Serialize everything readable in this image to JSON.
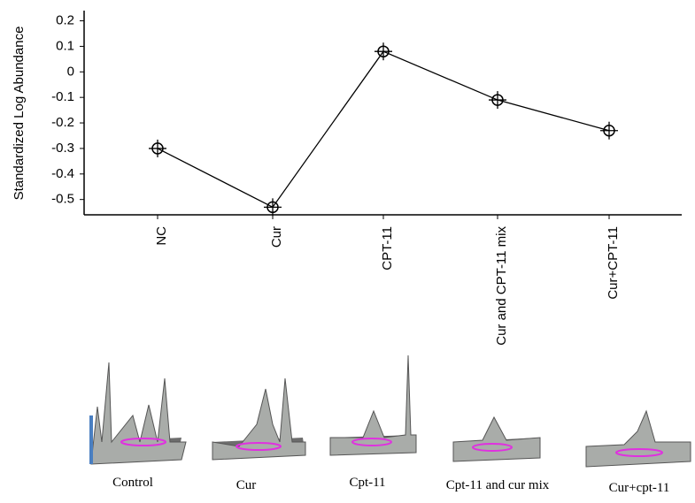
{
  "chart_data": {
    "type": "line",
    "y_label": "Standardized Log Abundance",
    "categories": [
      "NC",
      "Cur",
      "CPT-11",
      "Cur and CPT-11 mix",
      "Cur+CPT-11"
    ],
    "values": [
      -0.3,
      -0.53,
      0.08,
      -0.11,
      -0.23
    ],
    "color": "#000000",
    "ylim": [
      -0.56,
      0.24
    ],
    "yticks": [
      0.2,
      0.1,
      0,
      -0.1,
      -0.2,
      -0.3,
      -0.4,
      -0.5
    ]
  },
  "thumbnail_captions": [
    "Control",
    "Cur",
    "Cpt-11",
    "Cpt-11 and cur mix",
    "Cur+cpt-11"
  ]
}
